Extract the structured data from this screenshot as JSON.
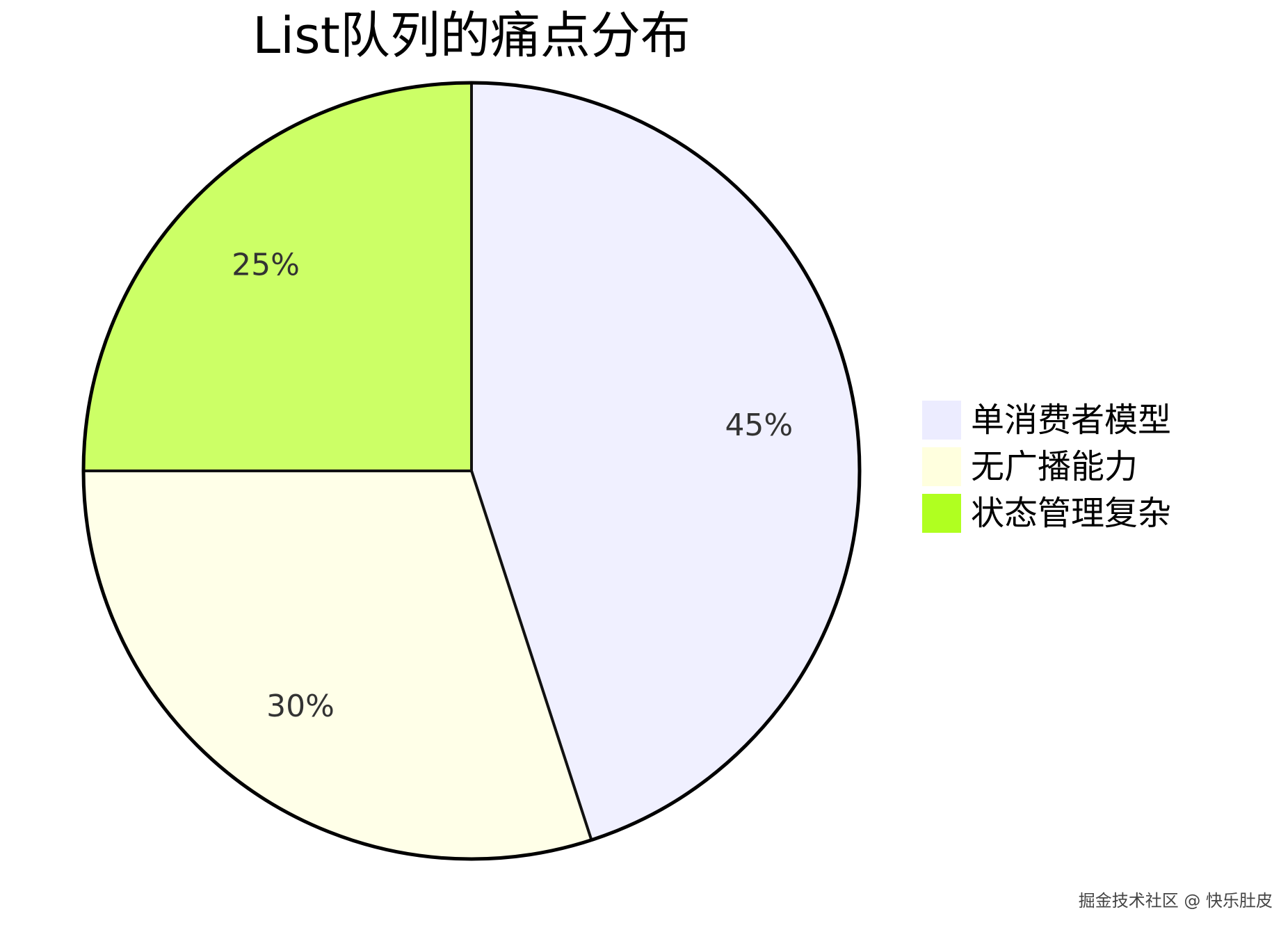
{
  "chart_data": {
    "type": "pie",
    "title": "List队列的痛点分布",
    "categories": [
      "单消费者模型",
      "无广播能力",
      "状态管理复杂"
    ],
    "values": [
      45,
      30,
      25
    ],
    "labels": [
      "45%",
      "30%",
      "25%"
    ],
    "colors": [
      "#f0f0ff",
      "#ffffe8",
      "#ccff66"
    ],
    "legend_colors": [
      "#ececff",
      "#ffffde",
      "#b0ff20"
    ],
    "start_angle_deg": 0,
    "direction": "clockwise",
    "legend_position": "right"
  },
  "watermark": "掘金技术社区 @ 快乐肚皮"
}
